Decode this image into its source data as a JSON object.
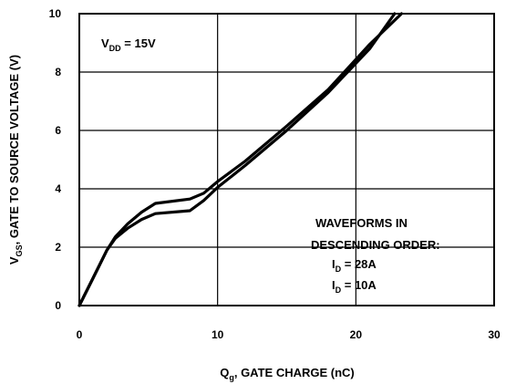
{
  "chart_data": {
    "type": "line",
    "xlabel": {
      "main": "Q",
      "sub": "g",
      "rest": ", GATE CHARGE (nC)"
    },
    "ylabel": {
      "main": "V",
      "sub": "GS",
      "rest": ", GATE TO SOURCE VOLTAGE (V)"
    },
    "xlim": [
      0,
      30
    ],
    "ylim": [
      0,
      10
    ],
    "x_ticks": [
      0,
      10,
      20,
      30
    ],
    "y_ticks": [
      0,
      2,
      4,
      6,
      8,
      10
    ],
    "grid": true,
    "annotations": {
      "vdd": {
        "main": "V",
        "sub": "DD",
        "rest": " = 15V"
      },
      "order_line1": "WAVEFORMS IN",
      "order_line2": "DESCENDING ORDER:",
      "id1": {
        "main": "I",
        "sub": "D",
        "rest": " = 28A"
      },
      "id2": {
        "main": "I",
        "sub": "D",
        "rest": " = 10A"
      }
    },
    "series": [
      {
        "x": [
          0,
          1,
          2,
          2.6,
          3.5,
          4.5,
          5.5,
          8,
          9,
          10,
          12,
          15,
          18,
          21,
          23.3
        ],
        "y": [
          0,
          0.95,
          1.9,
          2.35,
          2.8,
          3.2,
          3.5,
          3.65,
          3.85,
          4.25,
          4.95,
          6.15,
          7.4,
          8.95,
          10
        ]
      },
      {
        "x": [
          0,
          1,
          2,
          2.6,
          3.5,
          4.5,
          5.5,
          8,
          9,
          10,
          12,
          15,
          18,
          21,
          22.8
        ],
        "y": [
          0,
          0.95,
          1.9,
          2.3,
          2.65,
          2.95,
          3.15,
          3.25,
          3.6,
          4.05,
          4.8,
          6.0,
          7.3,
          8.8,
          10
        ]
      }
    ]
  }
}
